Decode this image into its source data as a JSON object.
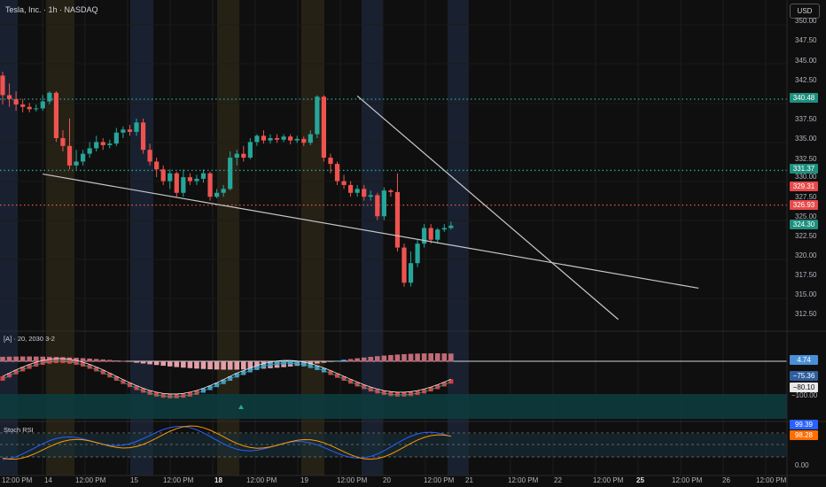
{
  "header": {
    "title": "Tesla, Inc. · 1h · NASDAQ"
  },
  "currency_button": "USD",
  "price_axis": {
    "ticks": [
      "350.00",
      "347.50",
      "345.00",
      "342.50",
      "337.50",
      "335.00",
      "332.50",
      "330.00",
      "327.50",
      "325.00",
      "322.50",
      "320.00",
      "317.50",
      "315.00",
      "312.50"
    ],
    "badges": [
      {
        "label": "340.48",
        "color": "#1e8f7e"
      },
      {
        "label": "331.37",
        "color": "#1e8f7e"
      },
      {
        "label": "329.31",
        "color": "#e84a4a"
      },
      {
        "label": "326.93",
        "color": "#e84a4a"
      },
      {
        "label": "324.30",
        "color": "#1e8f7e"
      }
    ]
  },
  "levels": [
    {
      "price": 340.48,
      "color": "#26a69a"
    },
    {
      "price": 331.37,
      "color": "#26a69a"
    },
    {
      "price": 326.93,
      "color": "#ef5350"
    }
  ],
  "time_axis": [
    "12:00 PM",
    "14",
    "12:00 PM",
    "15",
    "12:00 PM",
    "18",
    "12:00 PM",
    "19",
    "12:00 PM",
    "20",
    "12:00 PM",
    "21",
    "12:00 PM",
    "22",
    "12:00 PM",
    "25",
    "12:00 PM",
    "26",
    "12:00 PM"
  ],
  "macd": {
    "title": "[A] · 20, 2030 3-2",
    "badges": [
      {
        "label": "4.74",
        "color": "#4a8fd6"
      },
      {
        "label": "−75.36",
        "color": "#2f5f9e"
      },
      {
        "label": "−80.10",
        "color": "#e8e8e8"
      },
      {
        "label": "−100.00",
        "color": "#d1d4dc"
      }
    ]
  },
  "stoch_rsi": {
    "title": "Stoch RSI",
    "ticks": [
      "0.00"
    ],
    "badges": [
      {
        "label": "99.39",
        "color": "#2962ff"
      },
      {
        "label": "98.28",
        "color": "#ff6d00"
      }
    ]
  },
  "chart_data": {
    "type": "candlestick",
    "symbol": "Tesla, Inc.",
    "interval": "1h",
    "exchange": "NASDAQ",
    "currency": "USD",
    "ylim": [
      311.5,
      351
    ],
    "candles": [
      [
        343.5,
        341.0,
        344.0,
        339.8
      ],
      [
        341.0,
        340.5,
        342.5,
        339.5
      ],
      [
        340.5,
        339.8,
        341.5,
        339.0
      ],
      [
        339.8,
        339.5,
        340.5,
        338.8
      ],
      [
        339.5,
        339.2,
        340.0,
        338.8
      ],
      [
        339.2,
        339.3,
        339.8,
        338.9
      ],
      [
        339.3,
        340.2,
        341.0,
        339.0
      ],
      [
        340.2,
        341.3,
        341.5,
        339.8
      ],
      [
        341.3,
        335.5,
        341.5,
        335.0
      ],
      [
        335.5,
        334.5,
        336.5,
        333.8
      ],
      [
        334.5,
        332.0,
        338.0,
        331.5
      ],
      [
        332.0,
        332.5,
        334.0,
        331.5
      ],
      [
        332.5,
        333.5,
        334.0,
        332.0
      ],
      [
        333.5,
        334.2,
        335.0,
        333.0
      ],
      [
        334.2,
        335.0,
        335.8,
        333.8
      ],
      [
        335.0,
        334.6,
        335.5,
        334.0
      ],
      [
        334.6,
        334.8,
        335.3,
        334.2
      ],
      [
        334.8,
        336.2,
        336.8,
        334.5
      ],
      [
        336.2,
        336.6,
        337.0,
        335.5
      ],
      [
        336.6,
        336.3,
        337.2,
        335.8
      ],
      [
        336.3,
        337.5,
        338.0,
        335.8
      ],
      [
        337.5,
        334.0,
        338.0,
        333.5
      ],
      [
        334.0,
        332.5,
        334.8,
        332.0
      ],
      [
        332.5,
        331.5,
        333.0,
        330.5
      ],
      [
        331.5,
        330.0,
        332.0,
        329.5
      ],
      [
        330.0,
        331.0,
        331.5,
        329.0
      ],
      [
        331.0,
        328.5,
        331.2,
        328.0
      ],
      [
        328.5,
        330.5,
        331.5,
        328.0
      ],
      [
        330.5,
        330.0,
        331.0,
        329.5
      ],
      [
        330.0,
        330.3,
        330.8,
        329.5
      ],
      [
        330.3,
        331.0,
        331.5,
        329.8
      ],
      [
        331.0,
        328.0,
        331.2,
        327.5
      ],
      [
        328.0,
        328.5,
        329.0,
        327.8
      ],
      [
        328.5,
        329.0,
        329.5,
        328.0
      ],
      [
        329.0,
        333.0,
        333.8,
        328.8
      ],
      [
        333.0,
        333.5,
        334.0,
        332.0
      ],
      [
        333.5,
        333.0,
        334.5,
        332.5
      ],
      [
        333.0,
        335.0,
        335.5,
        332.8
      ],
      [
        335.0,
        335.8,
        336.0,
        334.5
      ],
      [
        335.8,
        335.2,
        336.5,
        334.8
      ],
      [
        335.2,
        335.5,
        336.0,
        334.8
      ],
      [
        335.5,
        335.3,
        336.0,
        334.9
      ],
      [
        335.3,
        335.7,
        336.0,
        335.0
      ],
      [
        335.7,
        335.2,
        336.0,
        334.7
      ],
      [
        335.2,
        335.4,
        335.8,
        334.9
      ],
      [
        335.4,
        334.9,
        335.7,
        334.5
      ],
      [
        334.9,
        336.0,
        336.5,
        334.6
      ],
      [
        336.0,
        340.8,
        341.0,
        335.5
      ],
      [
        340.8,
        333.0,
        341.0,
        332.5
      ],
      [
        333.0,
        332.2,
        333.5,
        331.0
      ],
      [
        332.2,
        330.0,
        332.5,
        329.5
      ],
      [
        330.0,
        329.5,
        330.8,
        329.0
      ],
      [
        329.5,
        328.5,
        330.0,
        328.0
      ],
      [
        328.5,
        329.0,
        329.5,
        328.0
      ],
      [
        329.0,
        328.0,
        329.5,
        327.5
      ],
      [
        328.0,
        328.2,
        328.8,
        327.5
      ],
      [
        328.2,
        325.5,
        328.5,
        325.0
      ],
      [
        325.5,
        328.8,
        329.2,
        325.0
      ],
      [
        328.8,
        328.6,
        329.0,
        328.0
      ],
      [
        328.6,
        321.5,
        331.0,
        321.0
      ],
      [
        321.5,
        317.0,
        322.0,
        316.5
      ],
      [
        317.0,
        319.5,
        321.0,
        316.5
      ],
      [
        319.5,
        322.0,
        322.5,
        319.0
      ],
      [
        322.0,
        324.0,
        324.5,
        321.5
      ],
      [
        324.0,
        322.5,
        324.5,
        322.0
      ],
      [
        322.5,
        323.8,
        324.0,
        322.0
      ],
      [
        323.8,
        324.0,
        324.5,
        323.5
      ],
      [
        324.0,
        324.3,
        324.8,
        323.8
      ]
    ],
    "trendlines": [
      {
        "from": {
          "x": 6,
          "y": 330.9
        },
        "to": {
          "x": 104,
          "y": 316.3
        }
      },
      {
        "from": {
          "x": 53,
          "y": 340.9
        },
        "to": {
          "x": 92,
          "y": 312.3
        }
      }
    ]
  }
}
